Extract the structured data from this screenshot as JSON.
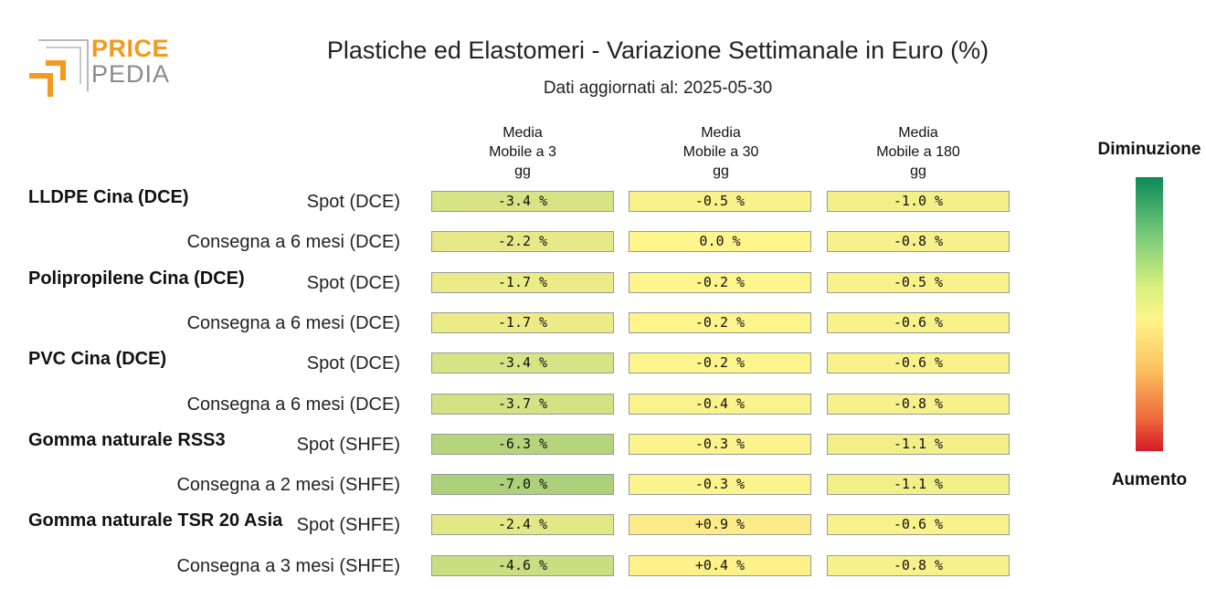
{
  "logo": {
    "word1": "PRICE",
    "word2": "PEDIA"
  },
  "chart_data": {
    "type": "table",
    "title": "Plastiche ed Elastomeri - Variazione Settimanale in Euro (%)",
    "subtitle": "Dati aggiornati al: 2025-05-30",
    "columns": [
      "Media\nMobile a 3\ngg",
      "Media\nMobile a 30\ngg",
      "Media\nMobile a 180\ngg"
    ],
    "groups": [
      {
        "name": "LLDPE Cina (DCE)",
        "rows": [
          {
            "label": "Spot (DCE)",
            "values": [
              -3.4,
              -0.5,
              -1.0
            ],
            "display": [
              "-3.4 %",
              "-0.5 %",
              "-1.0 %"
            ]
          },
          {
            "label": "Consegna a 6 mesi (DCE)",
            "values": [
              -2.2,
              0.0,
              -0.8
            ],
            "display": [
              "-2.2 %",
              "0.0 %",
              "-0.8 %"
            ]
          }
        ]
      },
      {
        "name": "Polipropilene Cina (DCE)",
        "rows": [
          {
            "label": "Spot (DCE)",
            "values": [
              -1.7,
              -0.2,
              -0.5
            ],
            "display": [
              "-1.7 %",
              "-0.2 %",
              "-0.5 %"
            ]
          },
          {
            "label": "Consegna a 6 mesi (DCE)",
            "values": [
              -1.7,
              -0.2,
              -0.6
            ],
            "display": [
              "-1.7 %",
              "-0.2 %",
              "-0.6 %"
            ]
          }
        ]
      },
      {
        "name": "PVC Cina (DCE)",
        "rows": [
          {
            "label": "Spot (DCE)",
            "values": [
              -3.4,
              -0.2,
              -0.6
            ],
            "display": [
              "-3.4 %",
              "-0.2 %",
              "-0.6 %"
            ]
          },
          {
            "label": "Consegna a 6 mesi (DCE)",
            "values": [
              -3.7,
              -0.4,
              -0.8
            ],
            "display": [
              "-3.7 %",
              "-0.4 %",
              "-0.8 %"
            ]
          }
        ]
      },
      {
        "name": "Gomma naturale RSS3",
        "rows": [
          {
            "label": "Spot (SHFE)",
            "values": [
              -6.3,
              -0.3,
              -1.1
            ],
            "display": [
              "-6.3 %",
              "-0.3 %",
              "-1.1 %"
            ]
          },
          {
            "label": "Consegna a 2 mesi (SHFE)",
            "values": [
              -7.0,
              -0.3,
              -1.1
            ],
            "display": [
              "-7.0 %",
              "-0.3 %",
              "-1.1 %"
            ]
          }
        ]
      },
      {
        "name": "Gomma naturale TSR 20 Asia",
        "rows": [
          {
            "label": "Spot (SHFE)",
            "values": [
              -2.4,
              0.9,
              -0.6
            ],
            "display": [
              "-2.4 %",
              "+0.9 %",
              "-0.6 %"
            ]
          },
          {
            "label": "Consegna a 3 mesi (SHFE)",
            "values": [
              -4.6,
              0.4,
              -0.8
            ],
            "display": [
              "-4.6 %",
              "+0.4 %",
              "-0.8 %"
            ]
          }
        ]
      }
    ],
    "legend": {
      "top": "Diminuzione",
      "bottom": "Aumento"
    },
    "colors": {
      "strong_decrease": "#0a8a5a",
      "neutral": "#fff48a",
      "strong_increase": "#d7192a"
    }
  }
}
